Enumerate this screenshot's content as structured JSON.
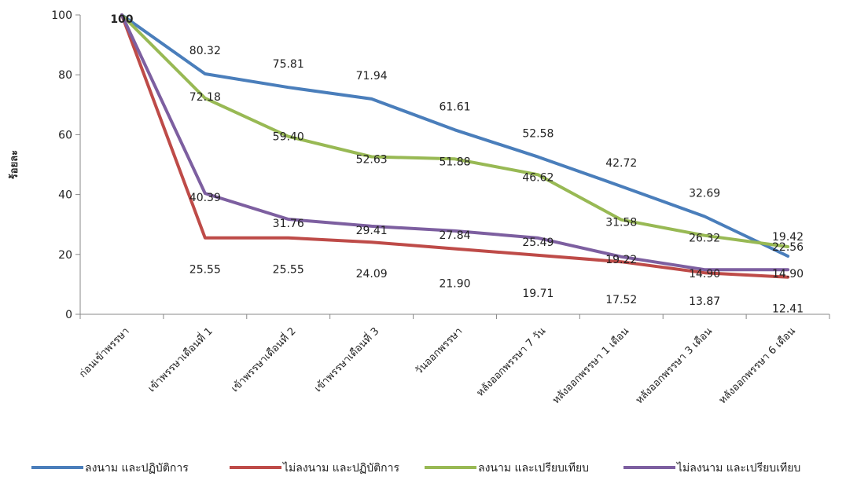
{
  "chart_data": {
    "type": "line",
    "title": "",
    "xlabel": "",
    "ylabel": "ร้อยละ",
    "ylim": [
      0,
      100
    ],
    "yticks": [
      0,
      20,
      40,
      60,
      80,
      100
    ],
    "grid": false,
    "legend_position": "bottom",
    "categories": [
      "ก่อนเข้าพรรษา",
      "เข้าพรรษาเดือนที่ 1",
      "เข้าพรรษาเดือนที่ 2",
      "เข้าพรรษาเดือนที่ 3",
      "วันออกพรรษา",
      "หลังออกพรรษา 7 วัน",
      "หลังออกพรรษา 1 เดือน",
      "หลังออกพรรษา 3 เดือน",
      "หลังออกพรรษา 6 เดือน"
    ],
    "series": [
      {
        "name": "ลงนาม และปฏิบัติการ",
        "color": "#4a7ebb",
        "values": [
          100,
          80.32,
          75.81,
          71.94,
          61.61,
          52.58,
          42.72,
          32.69,
          19.42
        ],
        "labels": [
          "100",
          "80.32",
          "75.81",
          "71.94",
          "61.61",
          "52.58",
          "42.72",
          "32.69",
          "19.42"
        ]
      },
      {
        "name": "ไม่ลงนาม และปฏิบัติการ",
        "color": "#be4b48",
        "values": [
          100,
          25.55,
          25.55,
          24.09,
          21.9,
          19.71,
          17.52,
          13.87,
          12.41
        ],
        "labels": [
          "",
          "25.55",
          "25.55",
          "24.09",
          "21.90",
          "19.71",
          "17.52",
          "13.87",
          "12.41"
        ]
      },
      {
        "name": "ลงนาม และเปรียบเทียบ",
        "color": "#98b954",
        "values": [
          100,
          72.18,
          59.4,
          52.63,
          51.88,
          46.62,
          31.58,
          26.32,
          22.56
        ],
        "labels": [
          "",
          "72.18",
          "59.40",
          "52.63",
          "51.88",
          "46.62",
          "31.58",
          "26.32",
          "22.56"
        ]
      },
      {
        "name": "ไม่ลงนาม และเปรียบเทียบ",
        "color": "#7d5fa0",
        "values": [
          100,
          40.39,
          31.76,
          29.41,
          27.84,
          25.49,
          19.22,
          14.9,
          14.9
        ],
        "labels": [
          "",
          "40.39",
          "31.76",
          "29.41",
          "27.84",
          "25.49",
          "19.22",
          "14.90",
          "14.90"
        ]
      }
    ]
  }
}
